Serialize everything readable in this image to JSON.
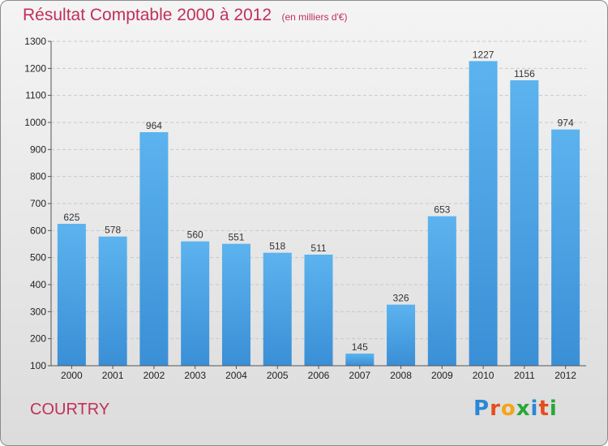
{
  "title": "Résultat Comptable 2000 à 2012",
  "unit_note": "(en milliers d'€)",
  "city": "COURTRY",
  "logo": {
    "letters": [
      "P",
      "r",
      "o",
      "x",
      "i",
      "t",
      "i"
    ],
    "colors": [
      "#2a87d6",
      "#e84c1e",
      "#f5a318",
      "#27a838",
      "#2a87d6",
      "#e84c1e",
      "#27a838"
    ]
  },
  "colors": {
    "bar": "#3a8fd6",
    "bar_light": "#5cb3ee",
    "title": "#c0305a"
  },
  "chart_data": {
    "type": "bar",
    "title": "Résultat Comptable 2000 à 2012",
    "xlabel": "",
    "ylabel": "",
    "categories": [
      "2000",
      "2001",
      "2002",
      "2003",
      "2004",
      "2005",
      "2006",
      "2007",
      "2008",
      "2009",
      "2010",
      "2011",
      "2012"
    ],
    "values": [
      625,
      578,
      964,
      560,
      551,
      518,
      511,
      145,
      326,
      653,
      1227,
      1156,
      974
    ],
    "ylim": [
      100,
      1300
    ],
    "yticks": [
      100,
      200,
      300,
      400,
      500,
      600,
      700,
      800,
      900,
      1000,
      1100,
      1200,
      1300
    ],
    "grid": "horizontal dashed",
    "legend": "none"
  }
}
